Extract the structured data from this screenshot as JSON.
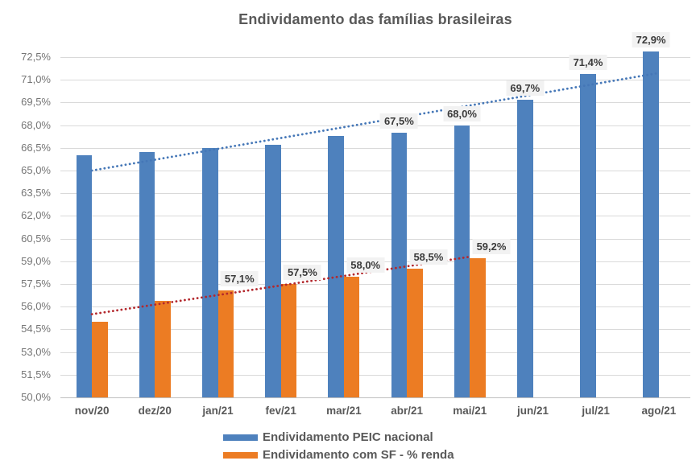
{
  "title": "Endividamento das famílias brasileiras",
  "chart_data": {
    "type": "bar",
    "title": "Endividamento das famílias brasileiras",
    "categories": [
      "nov/20",
      "dez/20",
      "jan/21",
      "fev/21",
      "mar/21",
      "abr/21",
      "mai/21",
      "jun/21",
      "jul/21",
      "ago/21"
    ],
    "series": [
      {
        "name": "Endividamento PEIC nacional",
        "color": "#4E81BD",
        "values": [
          66.0,
          66.2,
          66.5,
          66.7,
          67.3,
          67.5,
          68.0,
          69.7,
          71.4,
          72.9
        ],
        "data_labels": [
          "",
          "",
          "",
          "",
          "",
          "67,5%",
          "68,0%",
          "69,7%",
          "71,4%",
          "72,9%"
        ]
      },
      {
        "name": "Endividamento com SF - % renda",
        "color": "#EC7C23",
        "values": [
          55.0,
          56.4,
          57.1,
          57.5,
          58.0,
          58.5,
          59.2,
          null,
          null,
          null
        ],
        "data_labels": [
          "",
          "",
          "57,1%",
          "57,5%",
          "58,0%",
          "58,5%",
          "59,2%",
          "",
          "",
          ""
        ]
      }
    ],
    "trendlines": [
      {
        "series": "Endividamento PEIC nacional",
        "color": "#4577B7",
        "start_index": 0,
        "start_value": 65.0,
        "end_index": 9,
        "end_value": 71.45,
        "style": "dotted"
      },
      {
        "series": "Endividamento com SF - % renda",
        "color": "#B3282D",
        "start_index": 0,
        "start_value": 55.5,
        "end_index": 6,
        "end_value": 59.3,
        "style": "dotted"
      }
    ],
    "y_axis": {
      "min": 50.0,
      "max": 72.5,
      "step": 1.5,
      "tick_labels": [
        "50,0%",
        "51,5%",
        "53,0%",
        "54,5%",
        "56,0%",
        "57,5%",
        "59,0%",
        "60,5%",
        "62,0%",
        "63,5%",
        "65,0%",
        "66,5%",
        "68,0%",
        "69,5%",
        "71,0%",
        "72,5%"
      ]
    },
    "grid": true,
    "legend_position": "bottom",
    "colors": {
      "gridline": "#D9D9D9",
      "axis_line": "#BFBFBF",
      "title_text": "#595959",
      "tick_text": "#757575",
      "category_text": "#595959",
      "data_label_text": "#3B3B3B",
      "data_label_bg": "#F2F2F2",
      "background": "#FFFFFF"
    }
  }
}
